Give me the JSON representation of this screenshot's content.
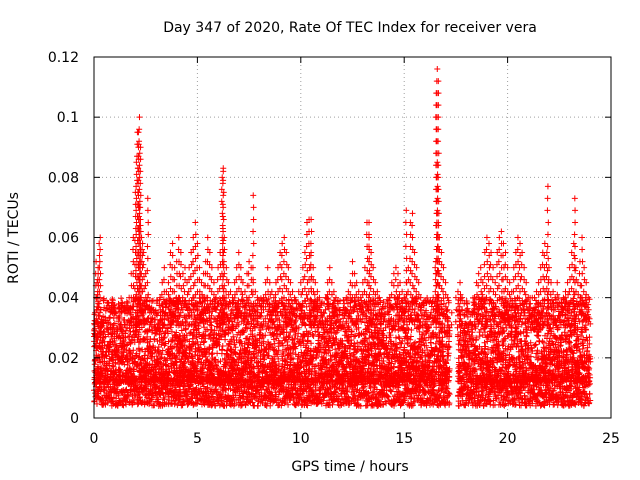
{
  "chart_data": {
    "type": "scatter",
    "title": "Day 347 of 2020, Rate Of TEC Index for receiver vera",
    "xlabel": "GPS time / hours",
    "ylabel": "ROTI / TECUs",
    "xlim": [
      0,
      25
    ],
    "ylim": [
      0,
      0.12
    ],
    "xticks": [
      0,
      5,
      10,
      15,
      20,
      25
    ],
    "yticks": [
      0,
      0.02,
      0.04,
      0.06,
      0.08,
      0.1,
      0.12
    ],
    "xtick_labels": [
      "0",
      "5",
      "10",
      "15",
      "20",
      "25"
    ],
    "ytick_labels": [
      "0",
      "0.02",
      "0.04",
      "0.06",
      "0.08",
      "0.1",
      "0.12"
    ],
    "grid": true,
    "marker": "+",
    "color": "#ff0000",
    "series": [
      {
        "x": [
          0.05,
          0.1,
          0.15,
          0.2,
          0.25,
          0.3,
          0.35,
          0.4,
          0.45,
          0.5,
          0.6,
          0.7,
          0.8,
          0.9,
          1.0,
          1.1,
          1.2,
          1.3,
          1.4,
          1.5,
          1.6,
          1.7,
          1.8,
          1.9,
          2.0,
          2.05,
          2.1,
          2.15,
          2.2,
          2.25,
          2.3,
          2.35,
          2.4,
          2.5,
          2.6,
          2.7,
          2.8,
          2.9,
          3.0,
          3.1,
          3.2,
          3.3,
          3.4,
          3.5,
          3.6,
          3.7,
          3.8,
          3.9,
          4.0,
          4.1,
          4.2,
          4.3,
          4.4,
          4.5,
          4.6,
          4.7,
          4.8,
          4.9,
          5.0,
          5.1,
          5.2,
          5.3,
          5.4,
          5.5,
          5.6,
          5.7,
          5.8,
          5.9,
          6.0,
          6.1,
          6.2,
          6.25,
          6.3,
          6.4,
          6.5,
          6.6,
          6.7,
          6.8,
          6.9,
          7.0,
          7.1,
          7.2,
          7.3,
          7.4,
          7.5,
          7.6,
          7.7,
          7.8,
          7.9,
          8.0,
          8.1,
          8.2,
          8.3,
          8.4,
          8.5,
          8.6,
          8.7,
          8.8,
          8.9,
          9.0,
          9.1,
          9.2,
          9.3,
          9.4,
          9.5,
          9.6,
          9.7,
          9.8,
          9.9,
          10.0,
          10.1,
          10.2,
          10.3,
          10.4,
          10.5,
          10.6,
          10.7,
          10.8,
          10.9,
          11.0,
          11.1,
          11.2,
          11.3,
          11.4,
          11.5,
          11.6,
          11.7,
          11.8,
          11.9,
          12.0,
          12.1,
          12.2,
          12.3,
          12.4,
          12.5,
          12.6,
          12.7,
          12.8,
          12.9,
          13.0,
          13.1,
          13.2,
          13.3,
          13.4,
          13.5,
          13.6,
          13.7,
          13.8,
          13.9,
          14.0,
          14.1,
          14.2,
          14.3,
          14.4,
          14.5,
          14.6,
          14.7,
          14.8,
          14.9,
          15.0,
          15.1,
          15.2,
          15.3,
          15.4,
          15.5,
          15.6,
          15.7,
          15.8,
          15.9,
          16.0,
          16.1,
          16.2,
          16.3,
          16.4,
          16.5,
          16.55,
          16.6,
          16.65,
          16.7,
          16.8,
          16.9,
          17.0,
          17.1,
          17.2,
          17.3,
          17.5,
          17.6,
          17.7,
          17.8,
          17.9,
          18.0,
          18.1,
          18.2,
          18.3,
          18.4,
          18.5,
          18.6,
          18.7,
          18.8,
          18.9,
          19.0,
          19.1,
          19.2,
          19.3,
          19.4,
          19.5,
          19.6,
          19.7,
          19.8,
          19.9,
          20.0,
          20.1,
          20.2,
          20.3,
          20.4,
          20.5,
          20.6,
          20.7,
          20.8,
          20.9,
          21.0,
          21.1,
          21.2,
          21.3,
          21.4,
          21.5,
          21.6,
          21.7,
          21.8,
          21.9,
          22.0,
          22.1,
          22.2,
          22.3,
          22.4,
          22.5,
          22.6,
          22.7,
          22.8,
          22.9,
          23.0,
          23.1,
          23.2,
          23.3,
          23.4,
          23.5,
          23.6,
          23.7,
          23.8,
          23.9,
          0.2,
          0.3,
          2.2,
          2.15,
          2.25,
          2.6,
          6.25,
          7.7,
          16.6,
          16.55,
          16.65,
          13.3,
          21.95,
          23.25,
          10.5,
          15.1
        ],
        "y": [
          0.035,
          0.052,
          0.045,
          0.05,
          0.058,
          0.03,
          0.028,
          0.025,
          0.022,
          0.02,
          0.018,
          0.022,
          0.025,
          0.03,
          0.028,
          0.03,
          0.032,
          0.035,
          0.03,
          0.035,
          0.03,
          0.04,
          0.048,
          0.06,
          0.075,
          0.085,
          0.095,
          0.09,
          0.07,
          0.064,
          0.06,
          0.058,
          0.055,
          0.048,
          0.04,
          0.035,
          0.032,
          0.03,
          0.028,
          0.035,
          0.04,
          0.045,
          0.05,
          0.042,
          0.045,
          0.055,
          0.058,
          0.05,
          0.052,
          0.06,
          0.055,
          0.048,
          0.05,
          0.045,
          0.05,
          0.055,
          0.06,
          0.065,
          0.058,
          0.05,
          0.045,
          0.048,
          0.052,
          0.06,
          0.055,
          0.05,
          0.045,
          0.04,
          0.05,
          0.055,
          0.08,
          0.082,
          0.06,
          0.05,
          0.045,
          0.042,
          0.04,
          0.045,
          0.05,
          0.055,
          0.05,
          0.045,
          0.042,
          0.048,
          0.052,
          0.05,
          0.045,
          0.042,
          0.04,
          0.038,
          0.035,
          0.04,
          0.045,
          0.05,
          0.045,
          0.042,
          0.04,
          0.045,
          0.05,
          0.055,
          0.058,
          0.06,
          0.055,
          0.05,
          0.045,
          0.042,
          0.04,
          0.038,
          0.042,
          0.045,
          0.05,
          0.055,
          0.065,
          0.066,
          0.055,
          0.05,
          0.045,
          0.042,
          0.04,
          0.038,
          0.035,
          0.04,
          0.045,
          0.05,
          0.045,
          0.042,
          0.04,
          0.038,
          0.036,
          0.035,
          0.038,
          0.04,
          0.042,
          0.045,
          0.052,
          0.048,
          0.045,
          0.042,
          0.04,
          0.045,
          0.05,
          0.065,
          0.06,
          0.055,
          0.05,
          0.045,
          0.042,
          0.04,
          0.035,
          0.032,
          0.03,
          0.035,
          0.04,
          0.045,
          0.048,
          0.05,
          0.048,
          0.045,
          0.042,
          0.04,
          0.045,
          0.05,
          0.065,
          0.068,
          0.055,
          0.05,
          0.045,
          0.04,
          0.038,
          0.035,
          0.032,
          0.03,
          0.035,
          0.04,
          0.05,
          0.08,
          0.085,
          0.065,
          0.06,
          0.055,
          0.05,
          0.045,
          0.04,
          0.03,
          0.035,
          0.04,
          0.042,
          0.045,
          0.04,
          0.038,
          0.035,
          0.03,
          0.032,
          0.035,
          0.04,
          0.045,
          0.048,
          0.05,
          0.045,
          0.055,
          0.06,
          0.058,
          0.055,
          0.05,
          0.045,
          0.055,
          0.06,
          0.062,
          0.058,
          0.055,
          0.05,
          0.045,
          0.042,
          0.05,
          0.055,
          0.06,
          0.058,
          0.055,
          0.05,
          0.045,
          0.04,
          0.038,
          0.035,
          0.04,
          0.042,
          0.045,
          0.05,
          0.055,
          0.058,
          0.055,
          0.05,
          0.045,
          0.042,
          0.04,
          0.045,
          0.038,
          0.035,
          0.04,
          0.042,
          0.045,
          0.05,
          0.055,
          0.058,
          0.05,
          0.045,
          0.052,
          0.06,
          0.05,
          0.045,
          0.04,
          0.048,
          0.06,
          0.1,
          0.095,
          0.09,
          0.073,
          0.083,
          0.074,
          0.116,
          0.108,
          0.112,
          0.065,
          0.077,
          0.073,
          0.066,
          0.069
        ]
      }
    ],
    "dense_band": {
      "x_segments": [
        [
          0.0,
          17.2
        ],
        [
          17.6,
          24.0
        ]
      ],
      "y_low_min": 0.004,
      "y_low_max": 0.012,
      "y_high_typical": 0.03
    }
  }
}
